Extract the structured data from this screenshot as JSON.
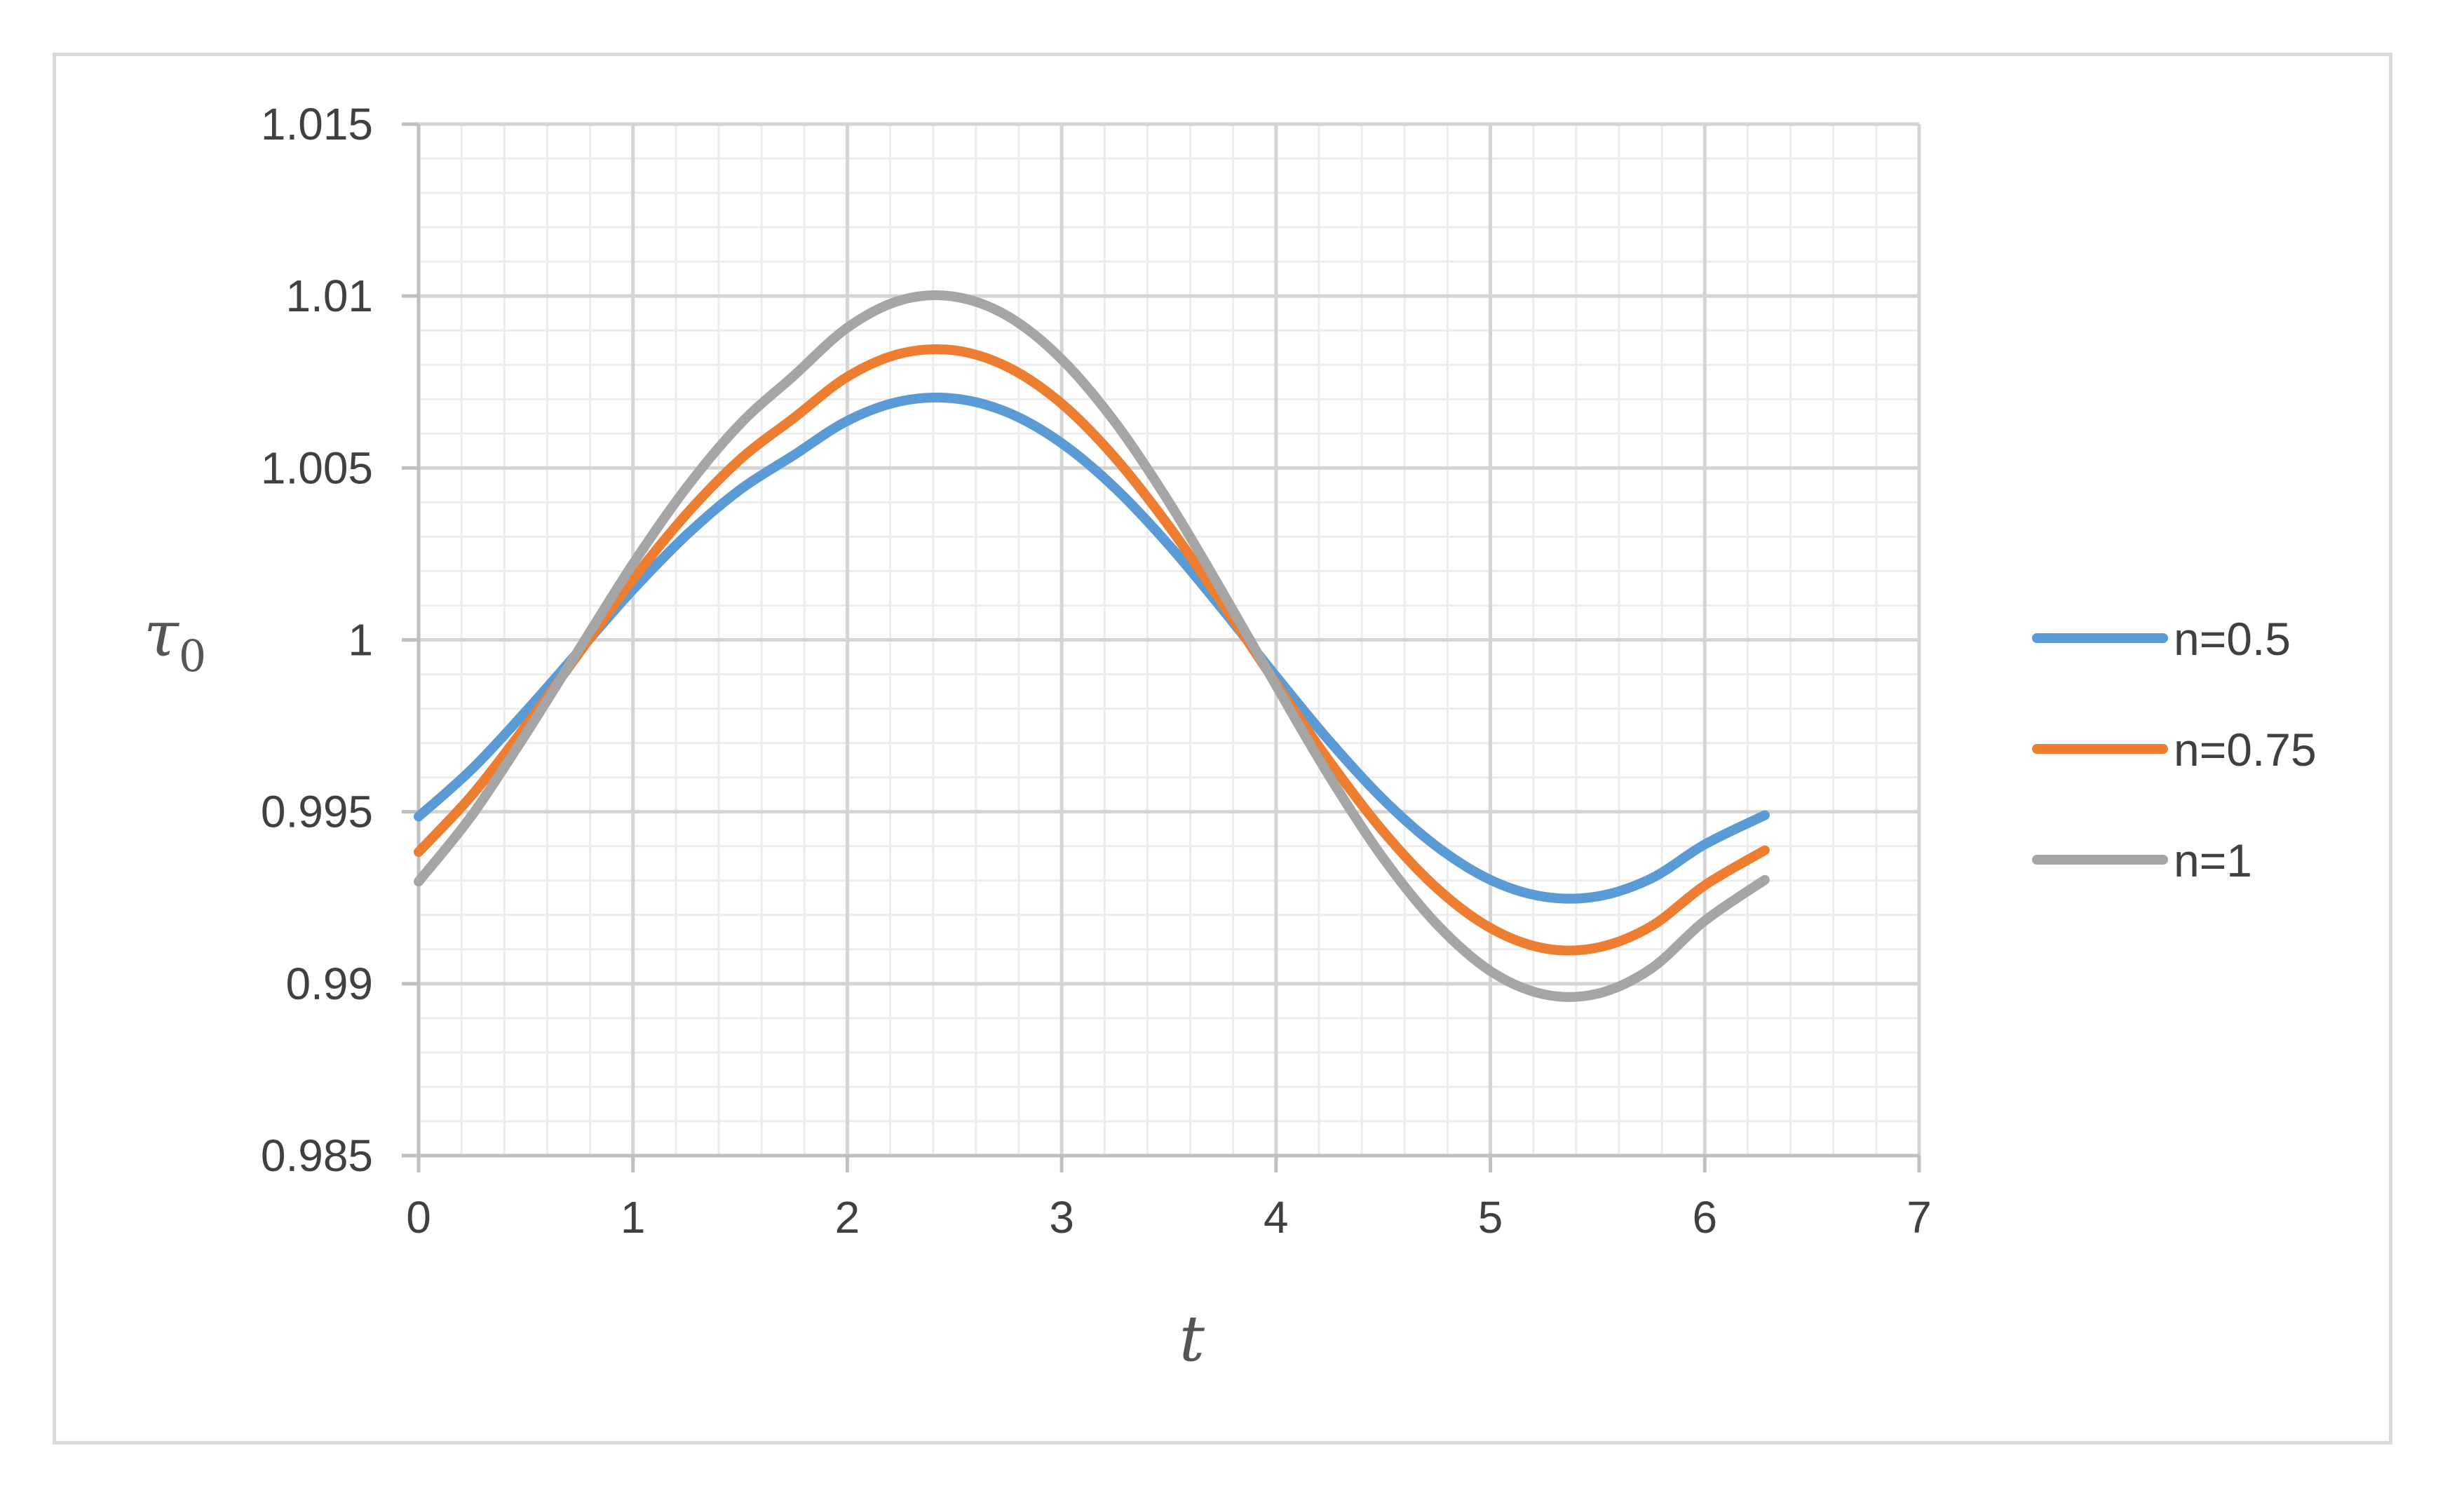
{
  "chart_data": {
    "type": "line",
    "title": "",
    "xlabel": "t",
    "ylabel": "τ",
    "ylabel_subscript": "0",
    "xlim": [
      0,
      7
    ],
    "ylim": [
      0.985,
      1.015
    ],
    "x_ticks": [
      "0",
      "1",
      "2",
      "3",
      "4",
      "5",
      "6",
      "7"
    ],
    "y_ticks": [
      "0.985",
      "0.99",
      "0.995",
      "1",
      "1.005",
      "1.01",
      "1.015"
    ],
    "grid": true,
    "legend_position": "right",
    "series": [
      {
        "name": "n=0.5",
        "color": "#5b9bd5",
        "x": [
          0,
          0.25,
          0.5,
          0.75,
          1.0,
          1.25,
          1.5,
          1.75,
          2.0,
          2.25,
          2.5,
          2.75,
          3.0,
          3.25,
          3.5,
          3.75,
          4.0,
          4.25,
          4.5,
          4.75,
          5.0,
          5.25,
          5.5,
          5.75,
          6.0,
          6.28
        ],
        "y": [
          0.99486,
          0.99625,
          0.99792,
          0.99969,
          1.00146,
          1.00305,
          1.00437,
          1.00537,
          1.00637,
          1.00694,
          1.00702,
          1.00661,
          1.00572,
          1.00441,
          1.00276,
          1.00089,
          0.99894,
          0.99705,
          0.99536,
          0.99399,
          0.99302,
          0.99253,
          0.99254,
          0.99306,
          0.99405,
          0.9949
        ]
      },
      {
        "name": "n=0.75",
        "color": "#ed7d31",
        "x": [
          0,
          0.25,
          0.5,
          0.75,
          1.0,
          1.25,
          1.5,
          1.75,
          2.0,
          2.25,
          2.5,
          2.75,
          3.0,
          3.25,
          3.5,
          3.75,
          4.0,
          4.25,
          4.5,
          4.75,
          5.0,
          5.25,
          5.5,
          5.75,
          6.0,
          6.28
        ],
        "y": [
          0.99383,
          0.99549,
          0.9975,
          0.99963,
          1.00176,
          1.00366,
          1.00525,
          1.00645,
          1.00765,
          1.00833,
          1.00842,
          1.00793,
          1.00687,
          1.00529,
          1.00331,
          1.00106,
          0.99873,
          0.99646,
          0.99443,
          0.99278,
          0.99162,
          0.99103,
          0.99105,
          0.99167,
          0.99286,
          0.99388
        ]
      },
      {
        "name": "n=1",
        "color": "#a5a5a5",
        "x": [
          0,
          0.25,
          0.5,
          0.75,
          1.0,
          1.25,
          1.5,
          1.75,
          2.0,
          2.25,
          2.5,
          2.75,
          3.0,
          3.25,
          3.5,
          3.75,
          4.0,
          4.25,
          4.5,
          4.75,
          5.0,
          5.25,
          5.5,
          5.75,
          6.0,
          6.28
        ],
        "y": [
          0.99297,
          0.99491,
          0.99726,
          0.99974,
          1.00221,
          1.00443,
          1.00628,
          1.00768,
          1.00908,
          1.00988,
          1.00998,
          1.00941,
          1.00816,
          1.00632,
          1.00401,
          1.00139,
          0.99867,
          0.99602,
          0.99365,
          0.99173,
          0.99037,
          0.98969,
          0.98971,
          0.99044,
          0.99183,
          0.99302
        ]
      }
    ]
  }
}
